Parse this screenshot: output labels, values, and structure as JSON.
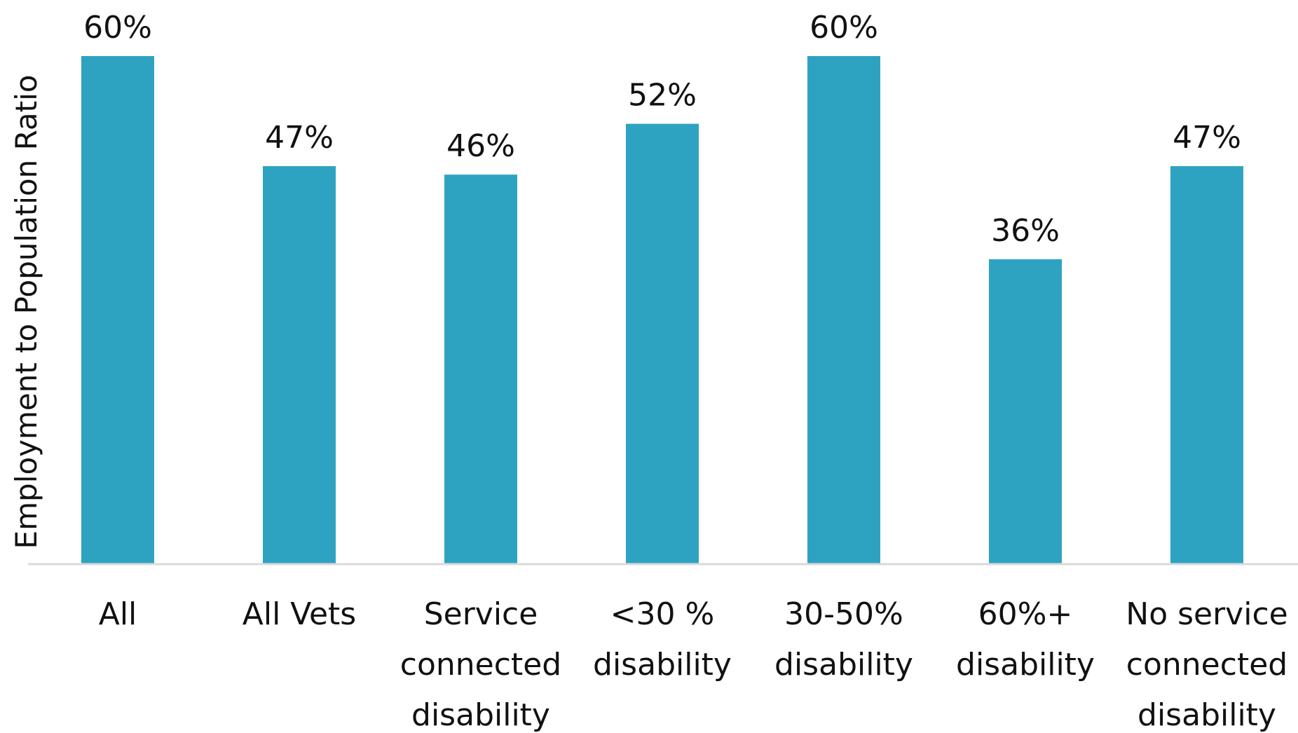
{
  "chart_data": {
    "type": "bar",
    "title": "",
    "xlabel": "",
    "ylabel": "Employment to Population Ratio",
    "ylim": [
      0,
      60
    ],
    "grid": false,
    "legend": "none",
    "colors": {
      "bar": "#2ea3c1",
      "axis": "#d9d9d9",
      "text": "#111111"
    },
    "categories": [
      [
        "All"
      ],
      [
        "All Vets"
      ],
      [
        "Service",
        "connected",
        "disability"
      ],
      [
        "<30 %",
        "disability"
      ],
      [
        "30-50%",
        "disability"
      ],
      [
        "60%+",
        "disability"
      ],
      [
        "No service",
        "connected",
        "disability"
      ]
    ],
    "values": [
      60,
      47,
      46,
      52,
      60,
      36,
      47
    ],
    "value_labels": [
      "60%",
      "47%",
      "46%",
      "52%",
      "60%",
      "36%",
      "47%"
    ]
  }
}
